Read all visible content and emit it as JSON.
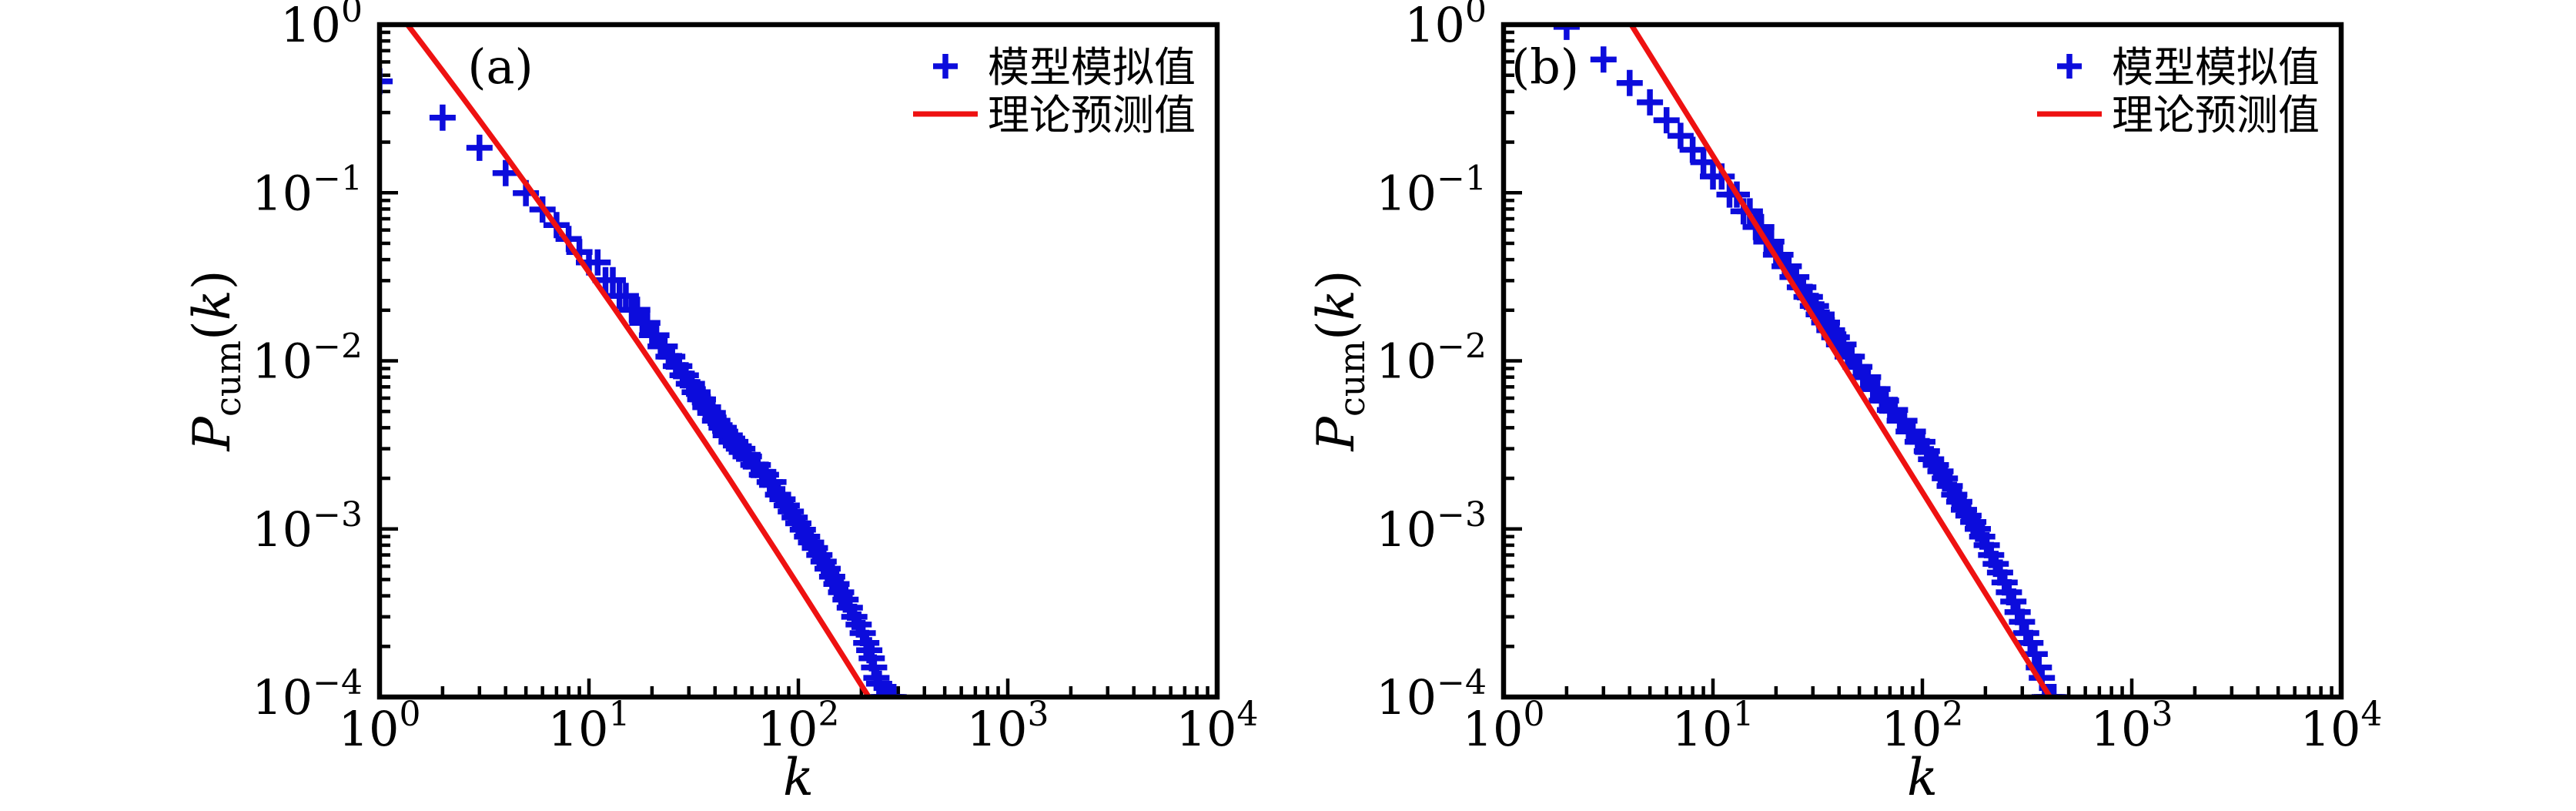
{
  "figure": {
    "background": "#ffffff",
    "frame_color": "#000000",
    "sim_color": "#0c0cdc",
    "theory_color": "#ee1111",
    "legend": {
      "sim_label": "模型模拟值",
      "theory_label": "理论预测值",
      "sim_marker": "plus-icon",
      "theory_marker": "line-sample"
    },
    "x_axis": {
      "label": "k",
      "scale": "log",
      "tick_exponents": [
        0,
        1,
        2,
        3,
        4
      ]
    },
    "y_axis": {
      "label_main": "P",
      "label_sub": "cum",
      "label_open": "(",
      "label_arg": "k",
      "label_close": ")",
      "scale": "log",
      "tick_exponents": [
        0,
        -1,
        -2,
        -3,
        -4
      ]
    }
  },
  "chart_data": [
    {
      "type": "scatter",
      "panel_tag": "(a)",
      "xlabel": "k",
      "ylabel": "P_cum(k)",
      "x_scale": "log",
      "y_scale": "log",
      "xlim": [
        1,
        10000
      ],
      "ylim": [
        0.0001,
        1
      ],
      "legend_position": "upper-right",
      "grid": false,
      "series": [
        {
          "name": "模型模拟值",
          "type": "scatter",
          "marker": "plus",
          "color": "#0c0cdc",
          "points": [
            [
              1,
              0.46
            ],
            [
              2,
              0.28
            ],
            [
              3,
              0.185
            ],
            [
              4,
              0.131
            ],
            [
              5,
              0.0995
            ],
            [
              6,
              0.0795
            ],
            [
              7,
              0.0642
            ],
            [
              8,
              0.0531
            ],
            [
              9,
              0.0444
            ],
            [
              10,
              0.0385
            ],
            [
              11,
              0.0385
            ],
            [
              12,
              0.0302
            ],
            [
              13,
              0.0302
            ],
            [
              14,
              0.0243
            ],
            [
              15,
              0.0243
            ],
            [
              16,
              0.0201
            ],
            [
              17,
              0.0201
            ],
            [
              18,
              0.0168
            ],
            [
              19,
              0.0168
            ],
            [
              20,
              0.0142
            ],
            [
              21,
              0.0142
            ],
            [
              22,
              0.0122
            ],
            [
              23,
              0.0122
            ],
            [
              24,
              0.0106
            ],
            [
              25,
              0.0106
            ],
            [
              26,
              0.0093
            ],
            [
              27,
              0.0093
            ],
            [
              28,
              0.0082
            ],
            [
              29,
              0.0082
            ],
            [
              30,
              0.0073
            ],
            [
              31,
              0.0073
            ],
            [
              32,
              0.0065
            ],
            [
              33,
              0.0065
            ],
            [
              34,
              0.0059
            ],
            [
              35,
              0.0059
            ],
            [
              36,
              0.0053
            ],
            [
              37,
              0.0053
            ],
            [
              38,
              0.0049
            ],
            [
              39,
              0.0049
            ],
            [
              40,
              0.0044
            ],
            [
              41,
              0.0044
            ],
            [
              43,
              0.004
            ],
            [
              44,
              0.004
            ],
            [
              45,
              0.0036
            ],
            [
              47,
              0.0036
            ],
            [
              48,
              0.0033
            ],
            [
              50,
              0.0033
            ],
            [
              52,
              0.003
            ],
            [
              54,
              0.003
            ],
            [
              56,
              0.0027
            ],
            [
              58,
              0.0027
            ],
            [
              61,
              0.0024
            ],
            [
              64,
              0.0024
            ],
            [
              67,
              0.0021
            ],
            [
              70,
              0.0021
            ],
            [
              73,
              0.0019
            ],
            [
              76,
              0.0019
            ],
            [
              80,
              0.0016
            ],
            [
              84,
              0.0015
            ],
            [
              88,
              0.00138
            ],
            [
              92,
              0.00127
            ],
            [
              96,
              0.00117
            ],
            [
              100,
              0.00108
            ],
            [
              105,
              0.00099
            ],
            [
              110,
              0.0009
            ],
            [
              115,
              0.00083
            ],
            [
              120,
              0.00077
            ],
            [
              126,
              0.0007
            ],
            [
              132,
              0.00064
            ],
            [
              138,
              0.00058
            ],
            [
              145,
              0.00052
            ],
            [
              152,
              0.00047
            ],
            [
              160,
              0.00042
            ],
            [
              168,
              0.00038
            ],
            [
              176,
              0.00034
            ],
            [
              185,
              0.0003
            ],
            [
              194,
              0.00027
            ],
            [
              203,
              0.00024
            ],
            [
              211,
              0.00021
            ],
            [
              218,
              0.00019
            ],
            [
              224,
              0.00017
            ],
            [
              230,
              0.00015
            ],
            [
              236,
              0.00013
            ],
            [
              243,
              0.00012
            ],
            [
              250,
              0.0001
            ],
            [
              257,
              0.0001
            ],
            [
              264,
              0.0001
            ],
            [
              271,
              0.0001
            ],
            [
              278,
              0.0001
            ],
            [
              285,
              0.0001
            ]
          ]
        },
        {
          "name": "理论预测值",
          "type": "line",
          "color": "#ee1111",
          "points": [
            [
              1.36,
              1.0
            ],
            [
              1.6,
              0.767
            ],
            [
              2,
              0.531
            ],
            [
              2.5,
              0.367
            ],
            [
              3,
              0.27
            ],
            [
              4,
              0.166
            ],
            [
              5,
              0.1132
            ],
            [
              6,
              0.0825
            ],
            [
              8,
              0.0499
            ],
            [
              10,
              0.0336
            ],
            [
              13,
              0.0211
            ],
            [
              17,
              0.013
            ],
            [
              22,
              0.0081
            ],
            [
              28,
              0.00519
            ],
            [
              36,
              0.00325
            ],
            [
              47,
              0.00197
            ],
            [
              60,
              0.00123
            ],
            [
              78,
              0.000745
            ],
            [
              100,
              0.00046
            ],
            [
              130,
              0.000275
            ],
            [
              165,
              0.000172
            ],
            [
              190,
              0.00013
            ],
            [
              217,
              0.0001
            ]
          ]
        }
      ]
    },
    {
      "type": "scatter",
      "panel_tag": "(b)",
      "xlabel": "k",
      "ylabel": "P_cum(k)",
      "x_scale": "log",
      "y_scale": "log",
      "xlim": [
        1,
        10000
      ],
      "ylim": [
        0.0001,
        1
      ],
      "legend_position": "upper-right",
      "grid": false,
      "series": [
        {
          "name": "模型模拟值",
          "type": "scatter",
          "marker": "plus",
          "color": "#0c0cdc",
          "points": [
            [
              2,
              0.97
            ],
            [
              3,
              0.62
            ],
            [
              4,
              0.45
            ],
            [
              5,
              0.345
            ],
            [
              6,
              0.27
            ],
            [
              7,
              0.218
            ],
            [
              8,
              0.18
            ],
            [
              9,
              0.152
            ],
            [
              10,
              0.125
            ],
            [
              11,
              0.125
            ],
            [
              12,
              0.0975
            ],
            [
              13,
              0.0975
            ],
            [
              14,
              0.0775
            ],
            [
              15,
              0.0775
            ],
            [
              16,
              0.0625
            ],
            [
              17,
              0.0625
            ],
            [
              18,
              0.0512
            ],
            [
              19,
              0.0512
            ],
            [
              20,
              0.0428
            ],
            [
              21,
              0.0428
            ],
            [
              22,
              0.0365
            ],
            [
              23,
              0.0365
            ],
            [
              24,
              0.0315
            ],
            [
              25,
              0.0315
            ],
            [
              26,
              0.0274
            ],
            [
              27,
              0.0274
            ],
            [
              28,
              0.024
            ],
            [
              29,
              0.024
            ],
            [
              30,
              0.0212
            ],
            [
              31,
              0.0212
            ],
            [
              32,
              0.0189
            ],
            [
              33,
              0.0189
            ],
            [
              34,
              0.0169
            ],
            [
              35,
              0.0169
            ],
            [
              36,
              0.0152
            ],
            [
              37,
              0.0152
            ],
            [
              38,
              0.0138
            ],
            [
              39,
              0.0138
            ],
            [
              40,
              0.0125
            ],
            [
              42,
              0.0125
            ],
            [
              44,
              0.0106
            ],
            [
              46,
              0.0106
            ],
            [
              48,
              0.0092
            ],
            [
              50,
              0.0092
            ],
            [
              52,
              0.008
            ],
            [
              55,
              0.008
            ],
            [
              58,
              0.0068
            ],
            [
              61,
              0.0068
            ],
            [
              64,
              0.0058
            ],
            [
              67,
              0.0058
            ],
            [
              70,
              0.0051
            ],
            [
              74,
              0.0051
            ],
            [
              78,
              0.0044
            ],
            [
              82,
              0.0044
            ],
            [
              86,
              0.0038
            ],
            [
              90,
              0.0038
            ],
            [
              95,
              0.0033
            ],
            [
              100,
              0.0033
            ],
            [
              105,
              0.0029
            ],
            [
              110,
              0.0026
            ],
            [
              116,
              0.0024
            ],
            [
              122,
              0.0022
            ],
            [
              128,
              0.002
            ],
            [
              135,
              0.0018
            ],
            [
              142,
              0.0016
            ],
            [
              150,
              0.00145
            ],
            [
              158,
              0.0013
            ],
            [
              166,
              0.0012
            ],
            [
              175,
              0.0011
            ],
            [
              184,
              0.001
            ],
            [
              193,
              0.0009
            ],
            [
              203,
              0.0008
            ],
            [
              213,
              0.0007
            ],
            [
              224,
              0.00062
            ],
            [
              235,
              0.00055
            ],
            [
              247,
              0.00048
            ],
            [
              259,
              0.00042
            ],
            [
              272,
              0.00037
            ],
            [
              285,
              0.00032
            ],
            [
              299,
              0.00028
            ],
            [
              313,
              0.00024
            ],
            [
              328,
              0.00021
            ],
            [
              344,
              0.00018
            ],
            [
              360,
              0.00015
            ],
            [
              372,
              0.00013
            ],
            [
              384,
              0.0001
            ],
            [
              394,
              0.0001
            ],
            [
              404,
              0.0001
            ],
            [
              414,
              0.0001
            ],
            [
              424,
              0.0001
            ]
          ]
        },
        {
          "name": "理论预测值",
          "type": "line",
          "color": "#ee1111",
          "points": [
            [
              4.07,
              1.0
            ],
            [
              6,
              0.46
            ],
            [
              10,
              0.1657
            ],
            [
              20,
              0.0414
            ],
            [
              40,
              0.01036
            ],
            [
              80,
              0.00259
            ],
            [
              160,
              0.000647
            ],
            [
              300,
              0.000184
            ],
            [
              407,
              0.0001
            ]
          ]
        }
      ]
    }
  ]
}
